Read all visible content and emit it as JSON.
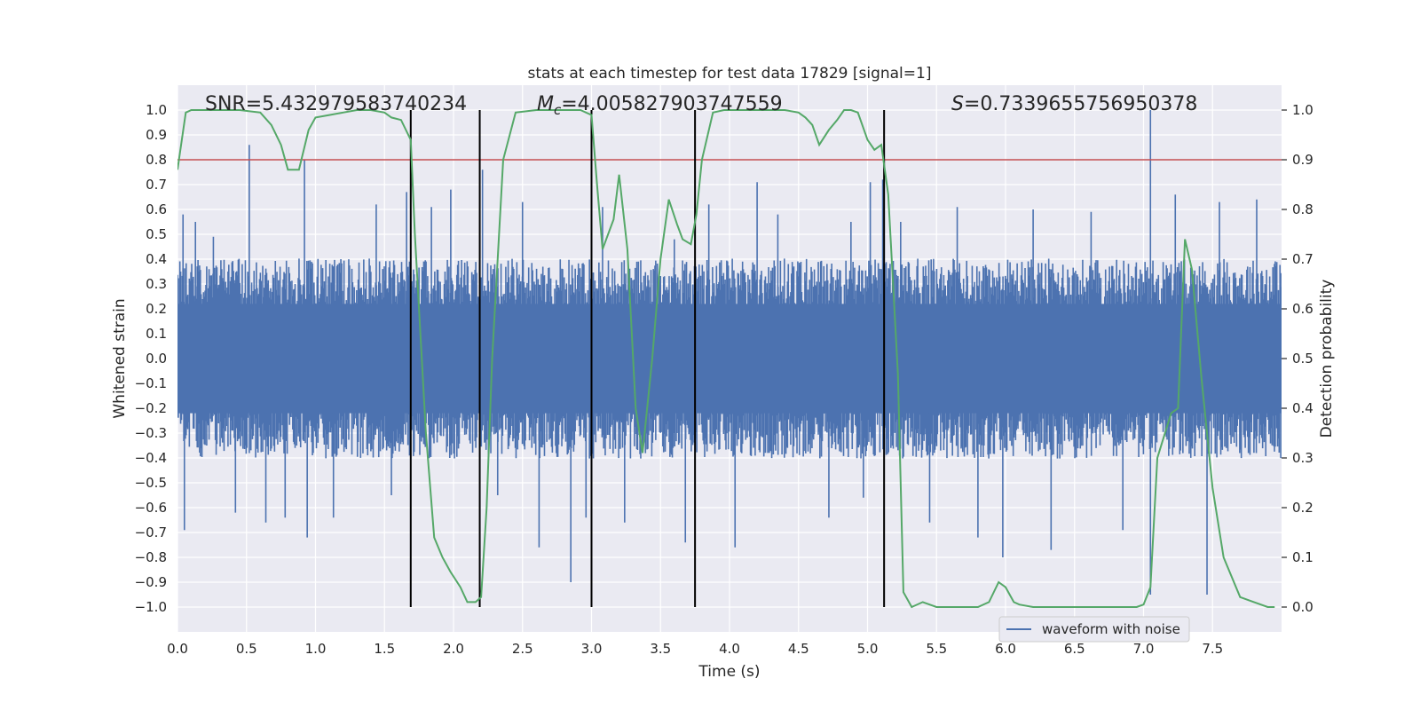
{
  "chart_data": {
    "type": "line",
    "title": "stats at each timestep for test data 17829 [signal=1]",
    "xlabel": "Time (s)",
    "ylabel": "Whitened strain",
    "y2label": "Detection probability",
    "xlim": [
      0.0,
      8.0
    ],
    "ylim": [
      -1.1,
      1.1
    ],
    "y2lim": [
      -0.05,
      1.05
    ],
    "xticks": [
      "0.0",
      "0.5",
      "1.0",
      "1.5",
      "2.0",
      "2.5",
      "3.0",
      "3.5",
      "4.0",
      "4.5",
      "5.0",
      "5.5",
      "6.0",
      "6.5",
      "7.0",
      "7.5"
    ],
    "yticks": [
      "−1.0",
      "−0.9",
      "−0.8",
      "−0.7",
      "−0.6",
      "−0.5",
      "−0.4",
      "−0.3",
      "−0.2",
      "−0.1",
      "0.0",
      "0.1",
      "0.2",
      "0.3",
      "0.4",
      "0.5",
      "0.6",
      "0.7",
      "0.8",
      "0.9",
      "1.0"
    ],
    "y2ticks": [
      "0.0",
      "0.1",
      "0.2",
      "0.3",
      "0.4",
      "0.5",
      "0.6",
      "0.7",
      "0.8",
      "0.9",
      "1.0"
    ],
    "grid": true,
    "legend_placement": "lower-right",
    "annotations": {
      "snr": "SNR=5.432979583740234",
      "mc_symbol": "M",
      "mc_sub": "c",
      "mc_value": "=4.005827903747559",
      "s_symbol": "S",
      "s_value": "=0.7339655756950378"
    },
    "threshold": {
      "value": 0.9,
      "axis": "right",
      "color": "#c44e52"
    },
    "vertical_lines": [
      1.69,
      2.19,
      3.0,
      3.75,
      5.12
    ],
    "series": [
      {
        "name": "waveform with noise",
        "color": "#4c72b0",
        "axis": "left",
        "noise_envelope_typical": 0.35,
        "spikes": [
          [
            0.04,
            0.58
          ],
          [
            0.05,
            -0.69
          ],
          [
            0.13,
            0.55
          ],
          [
            0.26,
            0.49
          ],
          [
            0.42,
            -0.62
          ],
          [
            0.52,
            0.86
          ],
          [
            0.64,
            -0.66
          ],
          [
            0.78,
            -0.64
          ],
          [
            0.92,
            0.8
          ],
          [
            0.94,
            -0.72
          ],
          [
            1.13,
            -0.64
          ],
          [
            1.44,
            0.62
          ],
          [
            1.55,
            -0.55
          ],
          [
            1.66,
            0.67
          ],
          [
            1.84,
            0.61
          ],
          [
            1.98,
            0.68
          ],
          [
            2.21,
            0.76
          ],
          [
            2.32,
            -0.55
          ],
          [
            2.5,
            0.63
          ],
          [
            2.62,
            -0.76
          ],
          [
            2.85,
            -0.9
          ],
          [
            2.96,
            -0.64
          ],
          [
            3.08,
            0.61
          ],
          [
            3.24,
            -0.66
          ],
          [
            3.6,
            0.48
          ],
          [
            3.68,
            -0.74
          ],
          [
            3.85,
            0.62
          ],
          [
            4.04,
            -0.76
          ],
          [
            4.2,
            0.71
          ],
          [
            4.35,
            0.58
          ],
          [
            4.72,
            -0.64
          ],
          [
            4.88,
            0.55
          ],
          [
            4.97,
            -0.56
          ],
          [
            5.02,
            0.71
          ],
          [
            5.11,
            0.72
          ],
          [
            5.24,
            0.55
          ],
          [
            5.45,
            -0.66
          ],
          [
            5.65,
            0.61
          ],
          [
            5.8,
            -0.72
          ],
          [
            5.98,
            -0.8
          ],
          [
            6.2,
            0.6
          ],
          [
            6.33,
            -0.77
          ],
          [
            6.62,
            0.59
          ],
          [
            6.85,
            -0.69
          ],
          [
            7.05,
            1.0
          ],
          [
            7.05,
            -0.95
          ],
          [
            7.23,
            0.66
          ],
          [
            7.46,
            -0.95
          ],
          [
            7.55,
            0.63
          ],
          [
            7.82,
            0.64
          ]
        ]
      },
      {
        "name": "",
        "color": "#55a868",
        "axis": "right",
        "x": [
          0.0,
          0.06,
          0.1,
          0.2,
          0.3,
          0.45,
          0.6,
          0.68,
          0.75,
          0.8,
          0.85,
          0.88,
          0.95,
          1.0,
          1.1,
          1.2,
          1.3,
          1.4,
          1.5,
          1.55,
          1.62,
          1.69,
          1.72,
          1.76,
          1.8,
          1.86,
          1.92,
          1.98,
          2.05,
          2.1,
          2.16,
          2.2,
          2.24,
          2.28,
          2.36,
          2.45,
          2.6,
          2.8,
          2.92,
          3.0,
          3.04,
          3.08,
          3.16,
          3.2,
          3.26,
          3.32,
          3.37,
          3.44,
          3.5,
          3.56,
          3.62,
          3.66,
          3.72,
          3.76,
          3.8,
          3.88,
          3.96,
          4.1,
          4.3,
          4.4,
          4.5,
          4.55,
          4.6,
          4.65,
          4.72,
          4.78,
          4.83,
          4.88,
          4.93,
          5.0,
          5.05,
          5.1,
          5.15,
          5.22,
          5.26,
          5.32,
          5.4,
          5.5,
          5.7,
          5.8,
          5.88,
          5.95,
          6.0,
          6.06,
          6.1,
          6.2,
          6.5,
          6.8,
          6.95,
          7.0,
          7.05,
          7.1,
          7.2,
          7.25,
          7.3,
          7.35,
          7.42,
          7.5,
          7.58,
          7.7,
          7.8,
          7.9,
          7.95
        ],
        "values": [
          0.88,
          0.995,
          1.0,
          1.0,
          1.0,
          1.0,
          0.995,
          0.97,
          0.93,
          0.88,
          0.88,
          0.88,
          0.96,
          0.985,
          0.99,
          0.995,
          1.0,
          1.0,
          0.995,
          0.985,
          0.98,
          0.94,
          0.75,
          0.55,
          0.35,
          0.14,
          0.1,
          0.07,
          0.04,
          0.01,
          0.01,
          0.02,
          0.2,
          0.5,
          0.9,
          0.995,
          1.0,
          1.0,
          1.0,
          0.99,
          0.85,
          0.72,
          0.78,
          0.87,
          0.72,
          0.4,
          0.31,
          0.5,
          0.7,
          0.82,
          0.77,
          0.74,
          0.73,
          0.79,
          0.9,
          0.995,
          1.0,
          1.0,
          1.0,
          1.0,
          0.995,
          0.985,
          0.97,
          0.93,
          0.96,
          0.98,
          1.0,
          1.0,
          0.995,
          0.94,
          0.92,
          0.93,
          0.83,
          0.47,
          0.03,
          0.0,
          0.01,
          0.0,
          0.0,
          0.0,
          0.01,
          0.05,
          0.04,
          0.01,
          0.005,
          0.0,
          0.0,
          0.0,
          0.0,
          0.005,
          0.04,
          0.3,
          0.39,
          0.4,
          0.74,
          0.68,
          0.46,
          0.24,
          0.1,
          0.02,
          0.01,
          0.0,
          0.0
        ]
      }
    ]
  }
}
